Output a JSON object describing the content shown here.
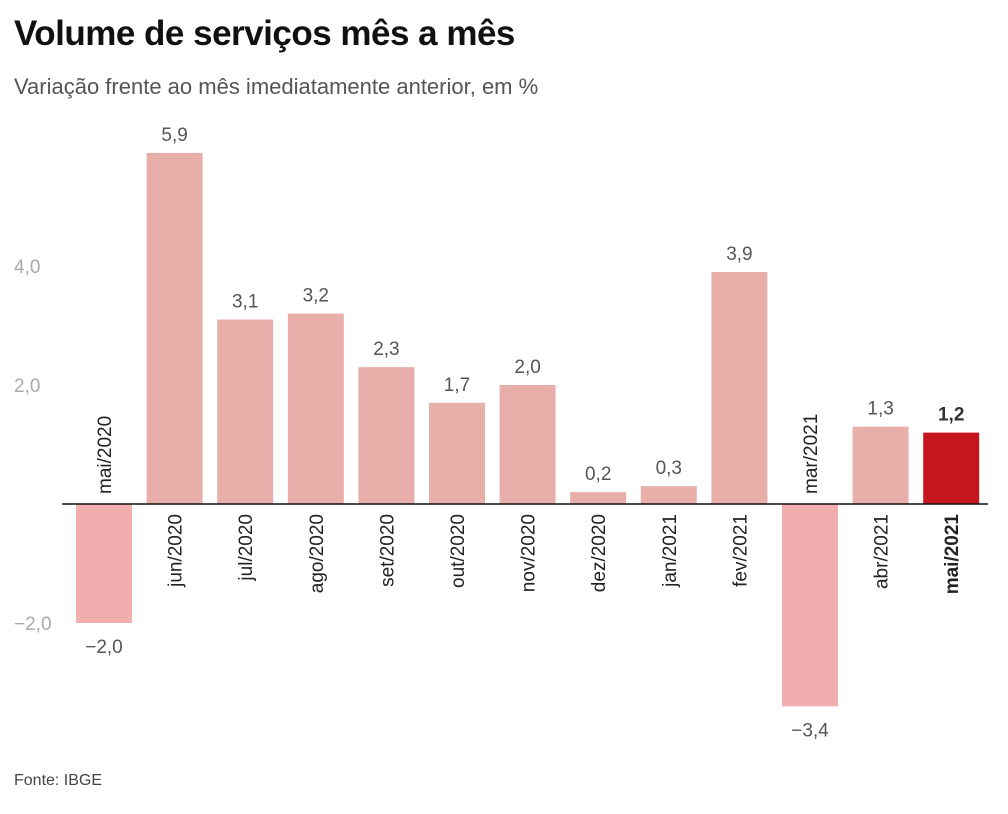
{
  "header": {
    "title": "Volume de serviços mês a mês",
    "subtitle": "Variação frente ao mês imediatamente anterior, em %"
  },
  "footer": {
    "source": "Fonte: IBGE"
  },
  "colors": {
    "positive": "#e8aea9",
    "negative": "#f2aeae",
    "highlight": "#c4161c",
    "axis": "#111111"
  },
  "chart_data": {
    "type": "bar",
    "title": "Volume de serviços mês a mês",
    "subtitle": "Variação frente ao mês imediatamente anterior, em %",
    "xlabel": "",
    "ylabel": "",
    "ylim": [
      -3.4,
      5.9
    ],
    "yticks": [
      {
        "value": 4,
        "label": "4,0"
      },
      {
        "value": 2,
        "label": "2,0"
      },
      {
        "value": -2,
        "label": "−2,0"
      }
    ],
    "categories": [
      "mai/2020",
      "jun/2020",
      "jul/2020",
      "ago/2020",
      "set/2020",
      "out/2020",
      "nov/2020",
      "dez/2020",
      "jan/2021",
      "fev/2021",
      "mar/2021",
      "abr/2021",
      "mai/2021"
    ],
    "values": [
      -2.0,
      5.9,
      3.1,
      3.2,
      2.3,
      1.7,
      2.0,
      0.2,
      0.3,
      3.9,
      -3.4,
      1.3,
      1.2
    ],
    "value_labels": [
      "−2,0",
      "5,9",
      "3,1",
      "3,2",
      "2,3",
      "1,7",
      "2,0",
      "0,2",
      "0,3",
      "3,9",
      "−3,4",
      "1,3",
      "1,2"
    ],
    "highlight_index": 12,
    "grid": false,
    "legend": "none"
  }
}
